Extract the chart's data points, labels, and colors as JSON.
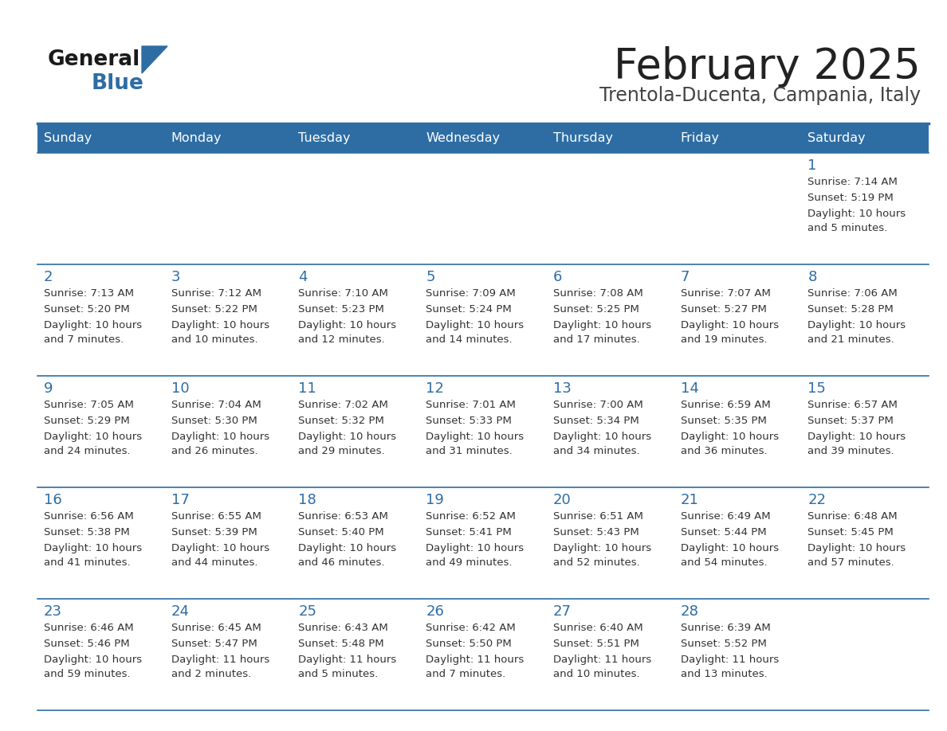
{
  "title": "February 2025",
  "subtitle": "Trentola-Ducenta, Campania, Italy",
  "days_of_week": [
    "Sunday",
    "Monday",
    "Tuesday",
    "Wednesday",
    "Thursday",
    "Friday",
    "Saturday"
  ],
  "header_bg": "#2E6DA4",
  "header_text": "#FFFFFF",
  "cell_bg": "#FFFFFF",
  "cell_text": "#333333",
  "day_num_color": "#2E6DA4",
  "separator_color": "#2E6DA4",
  "title_color": "#222222",
  "subtitle_color": "#444444",
  "logo_general_color": "#1a1a1a",
  "logo_blue_color": "#2E6DA4",
  "calendar_data": [
    [
      {
        "day": "",
        "sunrise": "",
        "sunset": "",
        "daylight": ""
      },
      {
        "day": "",
        "sunrise": "",
        "sunset": "",
        "daylight": ""
      },
      {
        "day": "",
        "sunrise": "",
        "sunset": "",
        "daylight": ""
      },
      {
        "day": "",
        "sunrise": "",
        "sunset": "",
        "daylight": ""
      },
      {
        "day": "",
        "sunrise": "",
        "sunset": "",
        "daylight": ""
      },
      {
        "day": "",
        "sunrise": "",
        "sunset": "",
        "daylight": ""
      },
      {
        "day": "1",
        "sunrise": "7:14 AM",
        "sunset": "5:19 PM",
        "daylight": "10 hours\nand 5 minutes."
      }
    ],
    [
      {
        "day": "2",
        "sunrise": "7:13 AM",
        "sunset": "5:20 PM",
        "daylight": "10 hours\nand 7 minutes."
      },
      {
        "day": "3",
        "sunrise": "7:12 AM",
        "sunset": "5:22 PM",
        "daylight": "10 hours\nand 10 minutes."
      },
      {
        "day": "4",
        "sunrise": "7:10 AM",
        "sunset": "5:23 PM",
        "daylight": "10 hours\nand 12 minutes."
      },
      {
        "day": "5",
        "sunrise": "7:09 AM",
        "sunset": "5:24 PM",
        "daylight": "10 hours\nand 14 minutes."
      },
      {
        "day": "6",
        "sunrise": "7:08 AM",
        "sunset": "5:25 PM",
        "daylight": "10 hours\nand 17 minutes."
      },
      {
        "day": "7",
        "sunrise": "7:07 AM",
        "sunset": "5:27 PM",
        "daylight": "10 hours\nand 19 minutes."
      },
      {
        "day": "8",
        "sunrise": "7:06 AM",
        "sunset": "5:28 PM",
        "daylight": "10 hours\nand 21 minutes."
      }
    ],
    [
      {
        "day": "9",
        "sunrise": "7:05 AM",
        "sunset": "5:29 PM",
        "daylight": "10 hours\nand 24 minutes."
      },
      {
        "day": "10",
        "sunrise": "7:04 AM",
        "sunset": "5:30 PM",
        "daylight": "10 hours\nand 26 minutes."
      },
      {
        "day": "11",
        "sunrise": "7:02 AM",
        "sunset": "5:32 PM",
        "daylight": "10 hours\nand 29 minutes."
      },
      {
        "day": "12",
        "sunrise": "7:01 AM",
        "sunset": "5:33 PM",
        "daylight": "10 hours\nand 31 minutes."
      },
      {
        "day": "13",
        "sunrise": "7:00 AM",
        "sunset": "5:34 PM",
        "daylight": "10 hours\nand 34 minutes."
      },
      {
        "day": "14",
        "sunrise": "6:59 AM",
        "sunset": "5:35 PM",
        "daylight": "10 hours\nand 36 minutes."
      },
      {
        "day": "15",
        "sunrise": "6:57 AM",
        "sunset": "5:37 PM",
        "daylight": "10 hours\nand 39 minutes."
      }
    ],
    [
      {
        "day": "16",
        "sunrise": "6:56 AM",
        "sunset": "5:38 PM",
        "daylight": "10 hours\nand 41 minutes."
      },
      {
        "day": "17",
        "sunrise": "6:55 AM",
        "sunset": "5:39 PM",
        "daylight": "10 hours\nand 44 minutes."
      },
      {
        "day": "18",
        "sunrise": "6:53 AM",
        "sunset": "5:40 PM",
        "daylight": "10 hours\nand 46 minutes."
      },
      {
        "day": "19",
        "sunrise": "6:52 AM",
        "sunset": "5:41 PM",
        "daylight": "10 hours\nand 49 minutes."
      },
      {
        "day": "20",
        "sunrise": "6:51 AM",
        "sunset": "5:43 PM",
        "daylight": "10 hours\nand 52 minutes."
      },
      {
        "day": "21",
        "sunrise": "6:49 AM",
        "sunset": "5:44 PM",
        "daylight": "10 hours\nand 54 minutes."
      },
      {
        "day": "22",
        "sunrise": "6:48 AM",
        "sunset": "5:45 PM",
        "daylight": "10 hours\nand 57 minutes."
      }
    ],
    [
      {
        "day": "23",
        "sunrise": "6:46 AM",
        "sunset": "5:46 PM",
        "daylight": "10 hours\nand 59 minutes."
      },
      {
        "day": "24",
        "sunrise": "6:45 AM",
        "sunset": "5:47 PM",
        "daylight": "11 hours\nand 2 minutes."
      },
      {
        "day": "25",
        "sunrise": "6:43 AM",
        "sunset": "5:48 PM",
        "daylight": "11 hours\nand 5 minutes."
      },
      {
        "day": "26",
        "sunrise": "6:42 AM",
        "sunset": "5:50 PM",
        "daylight": "11 hours\nand 7 minutes."
      },
      {
        "day": "27",
        "sunrise": "6:40 AM",
        "sunset": "5:51 PM",
        "daylight": "11 hours\nand 10 minutes."
      },
      {
        "day": "28",
        "sunrise": "6:39 AM",
        "sunset": "5:52 PM",
        "daylight": "11 hours\nand 13 minutes."
      },
      {
        "day": "",
        "sunrise": "",
        "sunset": "",
        "daylight": ""
      }
    ]
  ]
}
